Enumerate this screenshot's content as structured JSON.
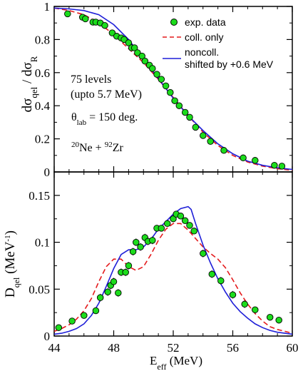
{
  "colors": {
    "exp": "#1cdc1c",
    "coll": "#e41a1c",
    "noncoll": "#1f1fd8",
    "axis": "#000000"
  },
  "chart_data": [
    {
      "type": "scatter",
      "panel": "top",
      "ylabel_main": "dσ",
      "ylabel_sub1": "qel",
      "ylabel_mid": " / dσ",
      "ylabel_sub2": "R",
      "xlim": [
        44,
        60
      ],
      "ylim": [
        0,
        1
      ],
      "yticks": [
        "0",
        "0.2",
        "0.4",
        "0.6",
        "0.8",
        "1"
      ],
      "yticks_values": [
        0,
        0.2,
        0.4,
        0.6,
        0.8,
        1.0
      ],
      "legend": {
        "placement": "top-right",
        "entries": [
          "exp. data",
          "coll. only",
          "noncoll.",
          "shifted by +0.6 MeV"
        ]
      },
      "annotations": {
        "levels": "75 levels",
        "upto": "(upto 5.7 MeV)",
        "theta_main": "θ",
        "theta_sub": "lab",
        "theta_value": " = 150 deg.",
        "ne_mass": "20",
        "ne": "Ne + ",
        "zr_mass": "92",
        "zr": "Zr"
      },
      "series": [
        {
          "name": "exp. data",
          "style": "markers",
          "x": [
            44.9,
            45.9,
            46.1,
            46.6,
            46.8,
            47.1,
            47.4,
            47.9,
            48.2,
            48.5,
            48.7,
            49.0,
            49.2,
            49.4,
            49.6,
            49.9,
            50.1,
            50.4,
            50.6,
            50.9,
            51.2,
            51.5,
            51.8,
            52.1,
            52.4,
            52.8,
            53.1,
            53.5,
            54.0,
            54.5,
            55.4,
            56.7,
            57.5,
            58.8,
            59.3
          ],
          "y": [
            0.955,
            0.935,
            0.925,
            0.905,
            0.905,
            0.9,
            0.885,
            0.84,
            0.82,
            0.81,
            0.8,
            0.78,
            0.75,
            0.75,
            0.72,
            0.7,
            0.67,
            0.645,
            0.625,
            0.59,
            0.56,
            0.52,
            0.48,
            0.43,
            0.4,
            0.36,
            0.33,
            0.27,
            0.22,
            0.185,
            0.13,
            0.085,
            0.07,
            0.04,
            0.035
          ]
        },
        {
          "name": "coll. only",
          "style": "dashed",
          "x": [
            44,
            45,
            46,
            47,
            48,
            49,
            50,
            51,
            52,
            53,
            54,
            55,
            56,
            57,
            58,
            59,
            60
          ],
          "y": [
            0.99,
            0.975,
            0.95,
            0.9,
            0.83,
            0.745,
            0.66,
            0.56,
            0.45,
            0.34,
            0.24,
            0.16,
            0.1,
            0.06,
            0.035,
            0.02,
            0.01
          ]
        },
        {
          "name": "noncoll. shifted by +0.6 MeV",
          "style": "solid",
          "x": [
            44,
            45,
            46,
            47,
            48,
            49,
            50,
            51,
            52,
            53,
            54,
            55,
            56,
            57,
            58,
            59,
            60
          ],
          "y": [
            0.99,
            0.985,
            0.975,
            0.95,
            0.89,
            0.8,
            0.68,
            0.565,
            0.445,
            0.34,
            0.25,
            0.17,
            0.11,
            0.065,
            0.04,
            0.025,
            0.015
          ]
        }
      ]
    },
    {
      "type": "scatter",
      "panel": "bottom",
      "ylabel_main": "D",
      "ylabel_sub": "qel",
      "ylabel_unit": " (MeV",
      "ylabel_exp": "-1",
      "ylabel_close": ")",
      "xlabel_main": "E",
      "xlabel_sub": "eff",
      "xlabel_unit": " (MeV)",
      "xlim": [
        44,
        60
      ],
      "ylim": [
        0,
        0.175
      ],
      "xticks": [
        "44",
        "48",
        "52",
        "56",
        "60"
      ],
      "xticks_values": [
        44,
        48,
        52,
        56,
        60
      ],
      "yticks": [
        "0",
        "0.05",
        "0.1",
        "0.15"
      ],
      "yticks_values": [
        0,
        0.05,
        0.1,
        0.15
      ],
      "series": [
        {
          "name": "exp. data",
          "style": "markers",
          "x": [
            44.3,
            45.2,
            46.0,
            46.8,
            47.1,
            47.6,
            47.8,
            48.0,
            48.3,
            48.5,
            48.8,
            49.0,
            49.3,
            49.5,
            49.8,
            50.1,
            50.3,
            50.6,
            50.9,
            51.2,
            51.6,
            52.0,
            52.2,
            52.5,
            52.8,
            53.1,
            53.4,
            54.0,
            54.6,
            55.2,
            56.0,
            56.8,
            57.5,
            58.5,
            59.1
          ],
          "y": [
            0.009,
            0.016,
            0.022,
            0.027,
            0.041,
            0.047,
            0.054,
            0.058,
            0.046,
            0.068,
            0.068,
            0.075,
            0.09,
            0.1,
            0.095,
            0.105,
            0.101,
            0.102,
            0.115,
            0.115,
            0.12,
            0.125,
            0.13,
            0.128,
            0.123,
            0.118,
            0.112,
            0.088,
            0.066,
            0.059,
            0.044,
            0.034,
            0.028,
            0.02,
            0.017
          ]
        },
        {
          "name": "coll. only",
          "style": "dashed",
          "x": [
            44,
            44.5,
            45,
            45.5,
            46,
            46.5,
            47,
            47.5,
            48,
            48.5,
            49,
            49.5,
            50,
            50.5,
            51,
            51.5,
            52,
            52.5,
            53,
            53.5,
            54,
            54.5,
            55,
            55.5,
            56,
            56.5,
            57,
            57.5,
            58,
            58.5,
            59,
            59.5,
            60
          ],
          "y": [
            0.005,
            0.008,
            0.012,
            0.018,
            0.027,
            0.04,
            0.058,
            0.074,
            0.082,
            0.082,
            0.074,
            0.07,
            0.074,
            0.087,
            0.102,
            0.114,
            0.12,
            0.12,
            0.113,
            0.104,
            0.095,
            0.088,
            0.082,
            0.073,
            0.06,
            0.046,
            0.034,
            0.024,
            0.016,
            0.01,
            0.007,
            0.005,
            0.003
          ]
        },
        {
          "name": "noncoll. shifted by +0.6 MeV",
          "style": "solid",
          "x": [
            44,
            44.5,
            45,
            45.5,
            46,
            46.5,
            47,
            47.5,
            48,
            48.5,
            49,
            49.5,
            50,
            50.5,
            51,
            51.5,
            52,
            52.5,
            53,
            53.2,
            53.5,
            54,
            54.5,
            55,
            55.5,
            56,
            56.5,
            57,
            57.5,
            58,
            58.5,
            59,
            59.5,
            60
          ],
          "y": [
            0.002,
            0.003,
            0.005,
            0.008,
            0.013,
            0.022,
            0.035,
            0.053,
            0.072,
            0.087,
            0.092,
            0.092,
            0.095,
            0.103,
            0.114,
            0.122,
            0.13,
            0.136,
            0.138,
            0.135,
            0.12,
            0.097,
            0.078,
            0.061,
            0.047,
            0.035,
            0.026,
            0.019,
            0.013,
            0.009,
            0.006,
            0.004,
            0.003,
            0.002
          ]
        }
      ]
    }
  ]
}
